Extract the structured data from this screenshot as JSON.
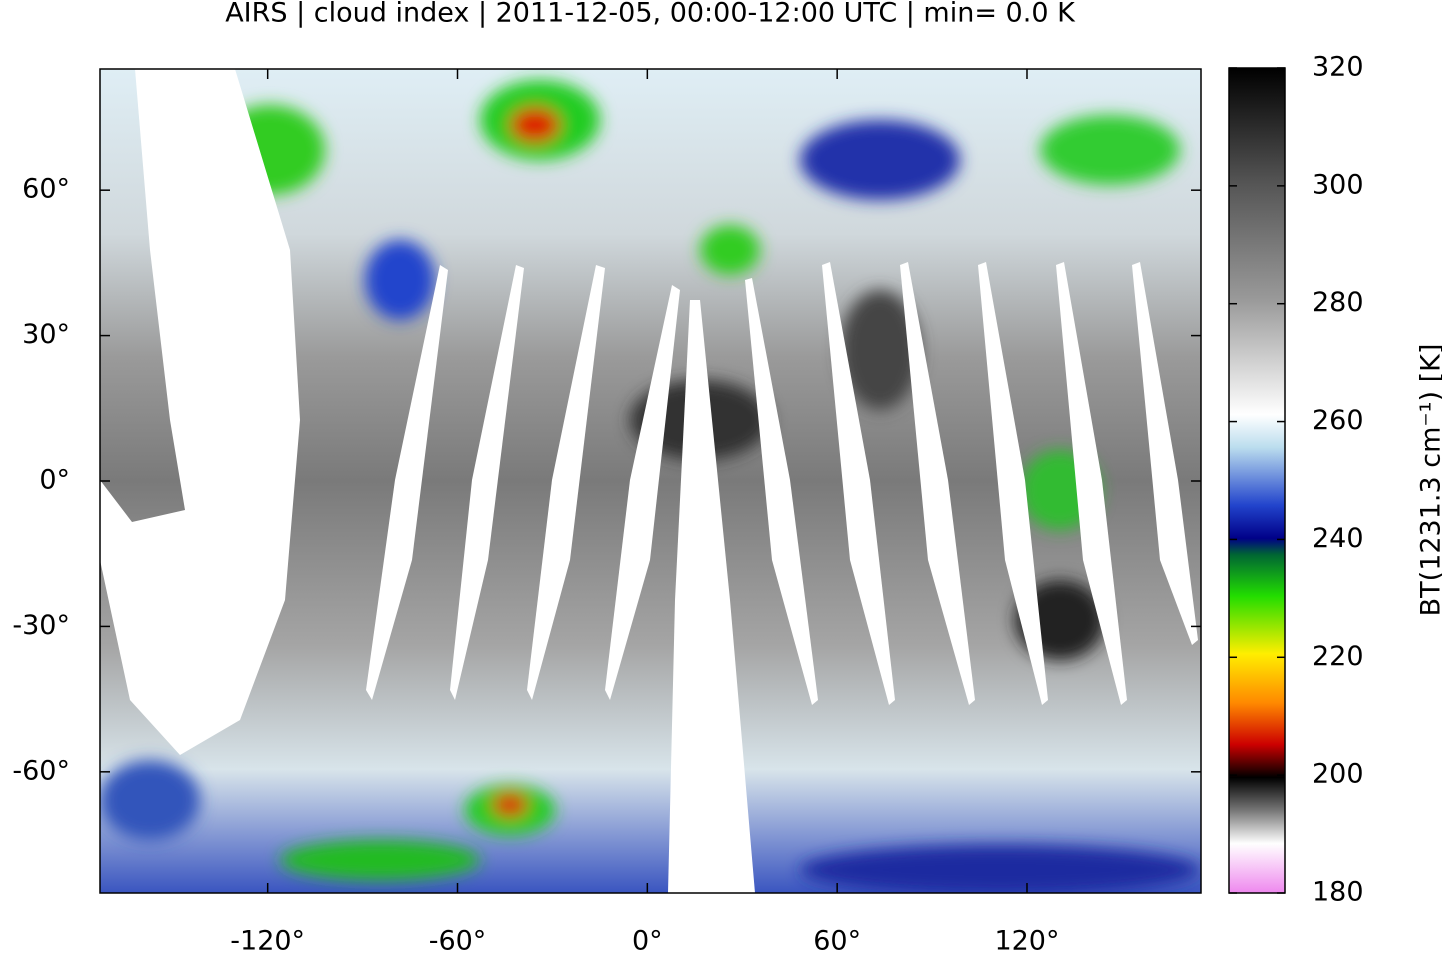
{
  "chart_data": {
    "type": "map",
    "title": "AIRS | cloud index | 2011-12-05, 00:00-12:00 UTC | min= 0.0 K",
    "xlim": [
      -173,
      175
    ],
    "ylim": [
      -85,
      85
    ],
    "xticks": [
      {
        "value": -120,
        "label": "-120°"
      },
      {
        "value": -60,
        "label": "-60°"
      },
      {
        "value": 0,
        "label": "0°"
      },
      {
        "value": 60,
        "label": "60°"
      },
      {
        "value": 120,
        "label": "120°"
      }
    ],
    "yticks": [
      {
        "value": -60,
        "label": "-60°"
      },
      {
        "value": -30,
        "label": "-30°"
      },
      {
        "value": 0,
        "label": "0°"
      },
      {
        "value": 30,
        "label": "30°"
      },
      {
        "value": 60,
        "label": "60°"
      }
    ],
    "colorbar": {
      "label": "BT(1231.3 cm⁻¹) [K]",
      "lim": [
        180,
        320
      ],
      "ticks": [
        180,
        200,
        220,
        240,
        260,
        280,
        300,
        320
      ]
    }
  }
}
